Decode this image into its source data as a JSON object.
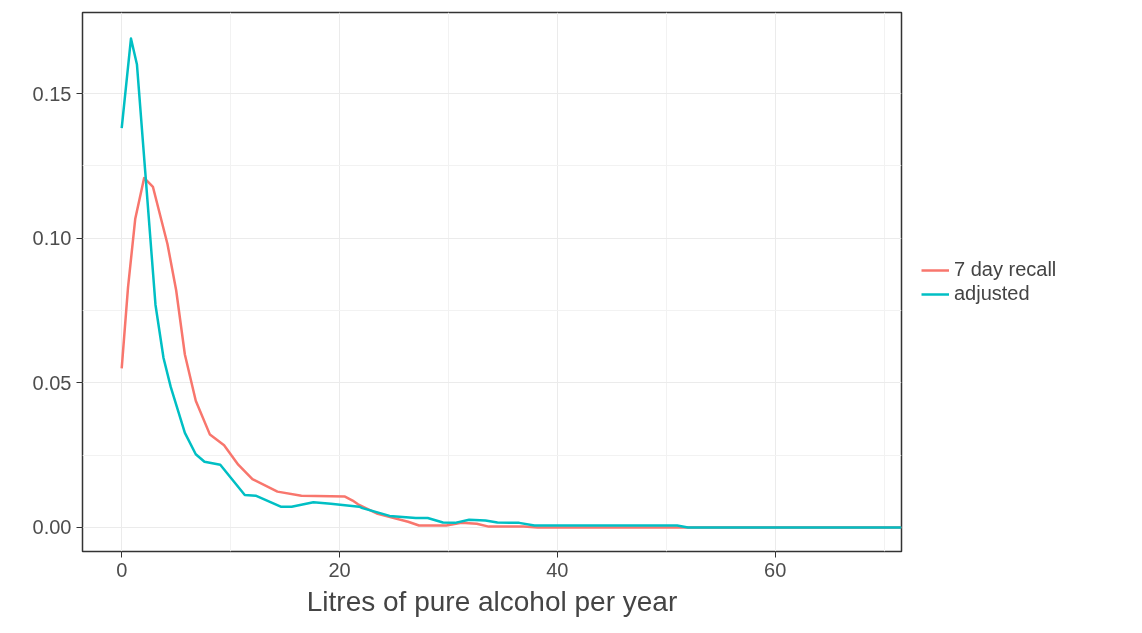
{
  "chart_data": {
    "type": "line",
    "xlabel": "Litres of pure alcohol per year",
    "xlim": [
      -3.6,
      71.6
    ],
    "ylim": [
      -0.0083,
      0.178
    ],
    "xticks": [
      0,
      20,
      40,
      60
    ],
    "yticks": [
      {
        "value": 0,
        "label": "0.00"
      },
      {
        "value": 0.05,
        "label": "0.05"
      },
      {
        "value": 0.1,
        "label": "0.10"
      },
      {
        "value": 0.15,
        "label": "0.15"
      }
    ],
    "grid": true,
    "legend": "right",
    "line_style": "solid",
    "marker": "none",
    "series": [
      {
        "name": "7 day recall",
        "color": "#f8766d",
        "x": [
          0,
          0.58,
          1.24,
          2.06,
          2.87,
          4.2,
          5.0,
          5.8,
          6.8,
          8.1,
          9.4,
          10.7,
          12,
          14.3,
          16.5,
          20.5,
          21.2,
          21.7,
          23.5,
          26.3,
          27.3,
          29.8,
          31.2,
          32.6,
          33.7,
          36.9,
          38.2,
          42.6,
          47.9,
          52,
          71.6
        ],
        "values": [
          0.055,
          0.083,
          0.1066,
          0.1208,
          0.1177,
          0.098,
          0.082,
          0.0598,
          0.0438,
          0.0321,
          0.0284,
          0.0217,
          0.0167,
          0.0124,
          0.011,
          0.0107,
          0.0093,
          0.008,
          0.0047,
          0.002,
          0.0007,
          0.0007,
          0.0016,
          0.0013,
          0.0003,
          0.0003,
          0,
          0,
          0,
          0,
          0
        ]
      },
      {
        "name": "adjusted",
        "color": "#00bfc4",
        "x": [
          0,
          0.85,
          1.4,
          2.16,
          3.1,
          3.84,
          4.5,
          5.8,
          6.8,
          7.6,
          9.05,
          11.3,
          12.3,
          14.6,
          15.6,
          17.6,
          19.2,
          21.8,
          22.1,
          24.6,
          27,
          28.1,
          29.5,
          30.6,
          31.9,
          33.4,
          34.5,
          36.5,
          37.9,
          51,
          52,
          71.6
        ],
        "values": [
          0.138,
          0.169,
          0.16,
          0.123,
          0.077,
          0.0586,
          0.0486,
          0.0327,
          0.0253,
          0.0227,
          0.0217,
          0.0112,
          0.011,
          0.0072,
          0.0072,
          0.0087,
          0.0082,
          0.0072,
          0.0067,
          0.004,
          0.0033,
          0.0033,
          0.0017,
          0.0016,
          0.0027,
          0.0024,
          0.0017,
          0.0016,
          0.0007,
          0.0007,
          0,
          0
        ]
      }
    ]
  }
}
